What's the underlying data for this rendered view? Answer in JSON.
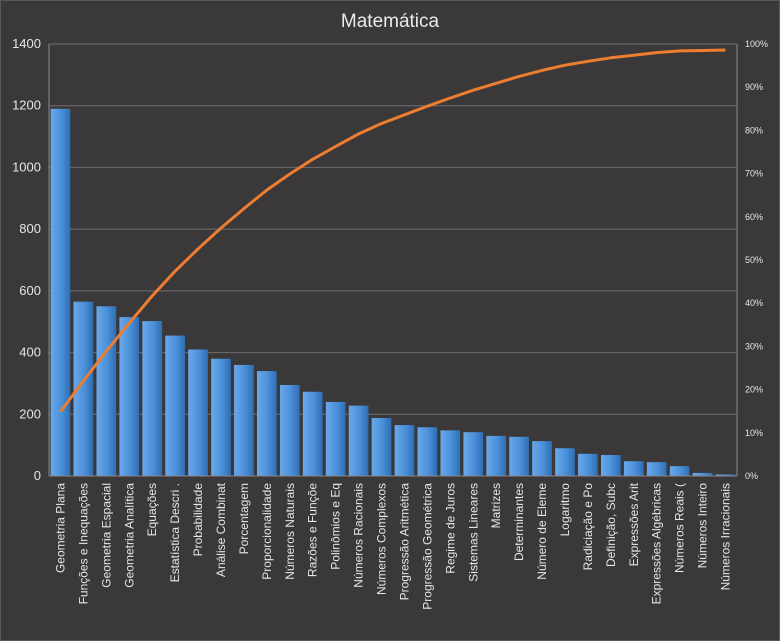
{
  "chart_data": {
    "type": "bar",
    "title": "Matemática",
    "categories": [
      "Geometria Plana",
      "Funções e Inequações",
      "Geometria Espacial",
      "Geometria Analítica",
      "Equações",
      "Estatística Descri .",
      "Probabilidade",
      "Análise Combinat",
      "Porcentagem",
      "Proporcionalidade",
      "Números Naturais",
      "Razões e Funçõe",
      "Polinômios e Eq",
      "Números Racionais",
      "Números Complexos",
      "Progressão Aritmética",
      "Progressão Geométrica",
      "Regime de Juros",
      "Sistemas Lineares",
      "Matrizes",
      "Determinantes",
      "Número de Eleme",
      "Logaritmo",
      "Radiciação e Po",
      "Definição, Subc",
      "Expressões Arit",
      "Expressões Algébricas",
      "Números Reais (",
      "Números Inteiro",
      "Números Irracionais"
    ],
    "values": [
      1190,
      565,
      550,
      515,
      502,
      455,
      410,
      380,
      360,
      340,
      295,
      273,
      240,
      228,
      188,
      165,
      158,
      148,
      142,
      130,
      127,
      113,
      90,
      72,
      68,
      48,
      45,
      32,
      10,
      5
    ],
    "series": [
      {
        "name": "",
        "type": "bar",
        "axis": "primary",
        "color": "#4a90d9"
      },
      {
        "name": "",
        "type": "line",
        "axis": "secondary",
        "color": "#ed7d31",
        "values": [
          14.9,
          22.0,
          28.9,
          35.4,
          41.7,
          47.4,
          52.6,
          57.4,
          61.9,
          66.2,
          69.9,
          73.3,
          76.3,
          79.2,
          81.6,
          83.6,
          85.6,
          87.5,
          89.3,
          90.9,
          92.5,
          93.9,
          95.1,
          96.0,
          96.8,
          97.4,
          98.0,
          98.4,
          98.5,
          98.6
        ]
      }
    ],
    "ylim": [
      0,
      1400
    ],
    "yticks": [
      "0",
      "200",
      "400",
      "600",
      "800",
      "1000",
      "1200",
      "1400"
    ],
    "y2lim": [
      0,
      100
    ],
    "y2ticks": [
      "0%",
      "10%",
      "20%",
      "30%",
      "40%",
      "50%",
      "60%",
      "70%",
      "80%",
      "90%",
      "100%"
    ],
    "grid": true,
    "legend": "none",
    "colors": {
      "background": "#3a3838",
      "bar": "#4a90d9",
      "line": "#ed7d31",
      "grid": "#6f6d6d",
      "text": "#e6e6e6"
    }
  }
}
